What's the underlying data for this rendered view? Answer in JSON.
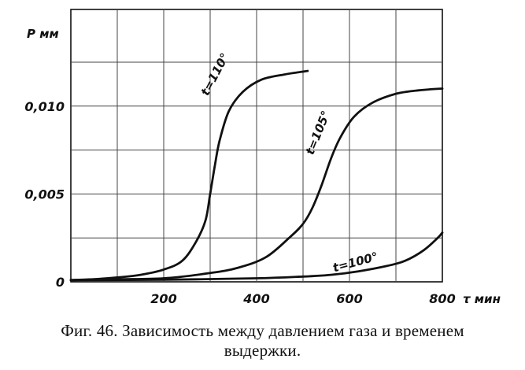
{
  "chart_data": {
    "type": "line",
    "title": "",
    "xlabel": "τ мин",
    "ylabel": "Р мм",
    "xlim": [
      0,
      800
    ],
    "ylim": [
      0,
      0.0155
    ],
    "x_ticks": [
      {
        "value": 200,
        "label": "200"
      },
      {
        "value": 400,
        "label": "400"
      },
      {
        "value": 600,
        "label": "600"
      },
      {
        "value": 800,
        "label": "800"
      }
    ],
    "y_ticks": [
      {
        "value": 0,
        "label": "0"
      },
      {
        "value": 0.005,
        "label": "0,005"
      },
      {
        "value": 0.01,
        "label": "0,010"
      }
    ],
    "grid": true,
    "grid_x": [
      100,
      200,
      300,
      400,
      500,
      600,
      700
    ],
    "grid_y": [
      0.0025,
      0.005,
      0.0075,
      0.01,
      0.0125
    ],
    "series": [
      {
        "name": "t=110°",
        "label_at": {
          "x": 318,
          "y": 0.0117
        },
        "label_angle": -62,
        "points": [
          [
            0,
            0.0001
          ],
          [
            50,
            0.00015
          ],
          [
            100,
            0.00025
          ],
          [
            150,
            0.0004
          ],
          [
            200,
            0.0007
          ],
          [
            240,
            0.0012
          ],
          [
            270,
            0.0023
          ],
          [
            290,
            0.0035
          ],
          [
            300,
            0.005
          ],
          [
            310,
            0.0066
          ],
          [
            320,
            0.008
          ],
          [
            340,
            0.0097
          ],
          [
            370,
            0.0108
          ],
          [
            410,
            0.0115
          ],
          [
            460,
            0.0118
          ],
          [
            510,
            0.012
          ]
        ]
      },
      {
        "name": "t=105°",
        "label_at": {
          "x": 540,
          "y": 0.0084
        },
        "label_angle": -68,
        "points": [
          [
            0,
            0.0001
          ],
          [
            100,
            0.00015
          ],
          [
            200,
            0.0002
          ],
          [
            300,
            0.0005
          ],
          [
            360,
            0.0008
          ],
          [
            420,
            0.0014
          ],
          [
            470,
            0.0025
          ],
          [
            500,
            0.0033
          ],
          [
            520,
            0.0042
          ],
          [
            540,
            0.0055
          ],
          [
            560,
            0.007
          ],
          [
            580,
            0.0082
          ],
          [
            610,
            0.0094
          ],
          [
            650,
            0.0102
          ],
          [
            700,
            0.0107
          ],
          [
            750,
            0.0109
          ],
          [
            800,
            0.011
          ]
        ]
      },
      {
        "name": "t=100°",
        "label_at": {
          "x": 615,
          "y": 0.0009
        },
        "label_angle": -15,
        "points": [
          [
            0,
            0.0001
          ],
          [
            200,
            0.00012
          ],
          [
            400,
            0.0002
          ],
          [
            500,
            0.0003
          ],
          [
            560,
            0.0004
          ],
          [
            620,
            0.0006
          ],
          [
            680,
            0.0009
          ],
          [
            720,
            0.0012
          ],
          [
            760,
            0.0018
          ],
          [
            790,
            0.0025
          ],
          [
            800,
            0.0028
          ]
        ]
      }
    ]
  },
  "caption": {
    "line1": "Фиг. 46. Зависимость между давлением газа и временем",
    "line2": "выдержки."
  }
}
